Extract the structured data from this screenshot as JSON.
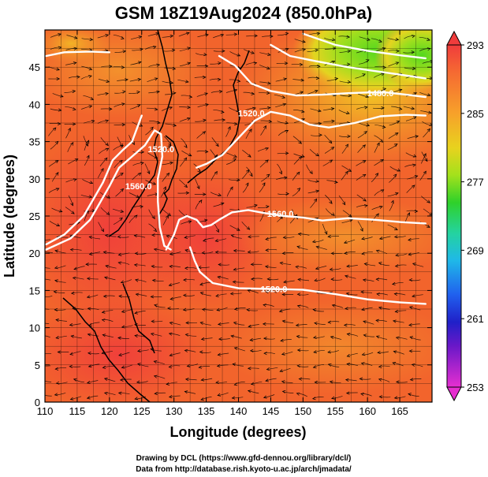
{
  "chart_data": {
    "type": "heatmap",
    "title": "GSM 18Z19Aug2024 (850.0hPa)",
    "xlabel": "Longitude (degrees)",
    "ylabel": "Latitude  (degrees)",
    "xlim": [
      110,
      170
    ],
    "ylim": [
      0,
      50
    ],
    "x_ticks": [
      "110",
      "115",
      "120",
      "125",
      "130",
      "135",
      "140",
      "145",
      "150",
      "155",
      "160",
      "165"
    ],
    "y_ticks": [
      "0",
      "5",
      "10",
      "15",
      "20",
      "25",
      "30",
      "35",
      "40",
      "45"
    ],
    "grid": true,
    "colorbar": {
      "ticks": [
        "293",
        "285",
        "277",
        "269",
        "261",
        "253"
      ],
      "min": 253,
      "max": 293,
      "placement": "right"
    },
    "contours": [
      {
        "label": "1520.0",
        "points": [
          [
            110.2,
            20.5
          ],
          [
            114,
            22
          ],
          [
            117,
            24.5
          ],
          [
            120,
            29
          ],
          [
            121.5,
            31.5
          ],
          [
            123.5,
            33
          ],
          [
            125.5,
            34.5
          ],
          [
            127,
            36.5
          ],
          [
            128,
            36
          ],
          [
            128.2,
            33
          ],
          [
            127.5,
            30
          ],
          [
            127.5,
            27
          ],
          [
            127.8,
            23.5
          ],
          [
            128.5,
            21
          ],
          [
            129.5,
            20.5
          ]
        ]
      },
      {
        "label": "1520.0",
        "points": [
          [
            132.5,
            20.8
          ],
          [
            133.2,
            19
          ],
          [
            134,
            17.5
          ],
          [
            136,
            16
          ],
          [
            140,
            15.3
          ],
          [
            145,
            15.2
          ],
          [
            150,
            15.1
          ],
          [
            155,
            14.5
          ],
          [
            160,
            13.8
          ],
          [
            165,
            13.4
          ],
          [
            169,
            13.2
          ]
        ]
      },
      {
        "label": "1560.0",
        "points": [
          [
            110.2,
            21.2
          ],
          [
            113,
            22.5
          ],
          [
            116,
            25
          ],
          [
            119,
            29.5
          ],
          [
            120.5,
            32.5
          ],
          [
            122,
            33.8
          ],
          [
            123.5,
            35
          ],
          [
            125,
            38.5
          ]
        ]
      },
      {
        "label": "1560.0",
        "points": [
          [
            128.8,
            20.5
          ],
          [
            130,
            22.5
          ],
          [
            130.8,
            24.5
          ],
          [
            132,
            25
          ],
          [
            133.5,
            24.5
          ],
          [
            134.5,
            23.5
          ],
          [
            135.8,
            23.8
          ],
          [
            137,
            24.5
          ],
          [
            139,
            25.5
          ],
          [
            141.5,
            25.8
          ],
          [
            144,
            25.4
          ],
          [
            147,
            25
          ],
          [
            150,
            24.8
          ],
          [
            153,
            24.4
          ],
          [
            157,
            24.7
          ],
          [
            161,
            24.5
          ],
          [
            165,
            24.2
          ],
          [
            169,
            24
          ]
        ]
      },
      {
        "label": "1520.0",
        "points": [
          [
            133.5,
            31.5
          ],
          [
            135,
            32
          ],
          [
            137.5,
            33.2
          ],
          [
            140,
            35.5
          ],
          [
            142.5,
            37.8
          ],
          [
            145,
            39
          ],
          [
            148,
            38.5
          ],
          [
            151,
            37.3
          ],
          [
            154,
            36.9
          ],
          [
            158,
            37.5
          ],
          [
            162,
            38.4
          ],
          [
            166,
            38.6
          ],
          [
            169,
            38.5
          ]
        ]
      },
      {
        "label": "1480.0",
        "points": [
          [
            137,
            46.5
          ],
          [
            139.5,
            45.2
          ],
          [
            142,
            42.8
          ],
          [
            145,
            41.8
          ],
          [
            149,
            41.2
          ],
          [
            153,
            41.3
          ],
          [
            157,
            41.5
          ],
          [
            160,
            41.6
          ],
          [
            163,
            41.6
          ],
          [
            166,
            41.3
          ],
          [
            169,
            41
          ]
        ]
      },
      {
        "label": "",
        "points": [
          [
            145,
            48
          ],
          [
            148,
            46.5
          ],
          [
            152,
            45.8
          ],
          [
            157,
            45
          ],
          [
            161,
            44.5
          ],
          [
            165,
            44
          ],
          [
            169,
            43.5
          ]
        ]
      },
      {
        "label": "",
        "points": [
          [
            150,
            49.5
          ],
          [
            155,
            48
          ],
          [
            160,
            47.2
          ],
          [
            165,
            46.6
          ],
          [
            169,
            46.2
          ]
        ]
      },
      {
        "label": "",
        "points": [
          [
            110.2,
            46.5
          ],
          [
            113,
            47
          ],
          [
            117,
            47.1
          ],
          [
            120,
            47
          ]
        ]
      }
    ],
    "contour_labels": [
      {
        "text": "1520.0",
        "lon": 142,
        "lat": 38.8
      },
      {
        "text": "1480.0",
        "lon": 162,
        "lat": 41.5
      },
      {
        "text": "1560.0",
        "lon": 124.5,
        "lat": 29
      },
      {
        "text": "1560.0",
        "lon": 146.5,
        "lat": 25.3
      },
      {
        "text": "1520.0",
        "lon": 145.5,
        "lat": 15.2
      },
      {
        "text": "1520.0",
        "lon": 128,
        "lat": 34
      }
    ]
  },
  "credits": {
    "line1": "Drawing by DCL (https://www.gfd-dennou.org/library/dcl/)",
    "line2": "Data from http://database.rish.kyoto-u.ac.jp/arch/jmadata/"
  }
}
